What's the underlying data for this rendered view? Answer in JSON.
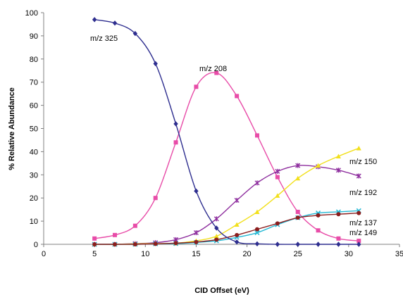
{
  "chart_data": {
    "type": "line",
    "title": "",
    "xlabel": "CID Offset (eV)",
    "ylabel": "% Relative Abundance",
    "xlim": [
      0,
      35
    ],
    "ylim": [
      0,
      100
    ],
    "xticks": [
      0,
      5,
      10,
      15,
      20,
      25,
      30,
      35
    ],
    "yticks": [
      0,
      10,
      20,
      30,
      40,
      50,
      60,
      70,
      80,
      90,
      100
    ],
    "grid": false,
    "legend": "none",
    "x": [
      5,
      7,
      9,
      11,
      13,
      15,
      17,
      19,
      21,
      23,
      25,
      27,
      29,
      31
    ],
    "series": [
      {
        "name": "m/z 325",
        "color": "#2E2E8F",
        "marker": "diamond",
        "values": [
          97,
          95.5,
          91,
          78,
          52,
          23,
          7,
          1,
          0.2,
          0,
          0,
          0,
          0,
          0
        ]
      },
      {
        "name": "m/z 208",
        "color": "#E84CA8",
        "marker": "square",
        "values": [
          2.5,
          4,
          8,
          20,
          44,
          68,
          74,
          64,
          47,
          29,
          14,
          6,
          2.5,
          1.5
        ]
      },
      {
        "name": "m/z 150",
        "color": "#F2E01C",
        "marker": "triangle",
        "values": [
          0,
          0,
          0.2,
          0.3,
          0.5,
          1.5,
          3.5,
          8.5,
          14,
          21,
          28.5,
          34,
          38,
          41.5
        ]
      },
      {
        "name": "m/z 192",
        "color": "#8E2E9E",
        "marker": "star",
        "values": [
          0,
          0,
          0.3,
          0.7,
          2,
          5,
          11,
          19,
          26.5,
          31.5,
          34,
          33.5,
          32,
          29.5
        ]
      },
      {
        "name": "m/z 137",
        "color": "#23B8D4",
        "marker": "x",
        "values": [
          0,
          0,
          0,
          0.2,
          0.3,
          0.8,
          1.5,
          3,
          5,
          8.5,
          11.5,
          13.5,
          14,
          14.5
        ]
      },
      {
        "name": "m/z 149",
        "color": "#8B1E1E",
        "marker": "circle",
        "values": [
          0,
          0,
          0,
          0.2,
          0.5,
          1,
          2,
          4,
          6.5,
          9,
          11.5,
          12.5,
          13,
          13.5
        ]
      }
    ],
    "annotations": [
      "m/z 325",
      "m/z 208",
      "m/z 150",
      "m/z 192",
      "m/z 137",
      "m/z 149"
    ]
  }
}
